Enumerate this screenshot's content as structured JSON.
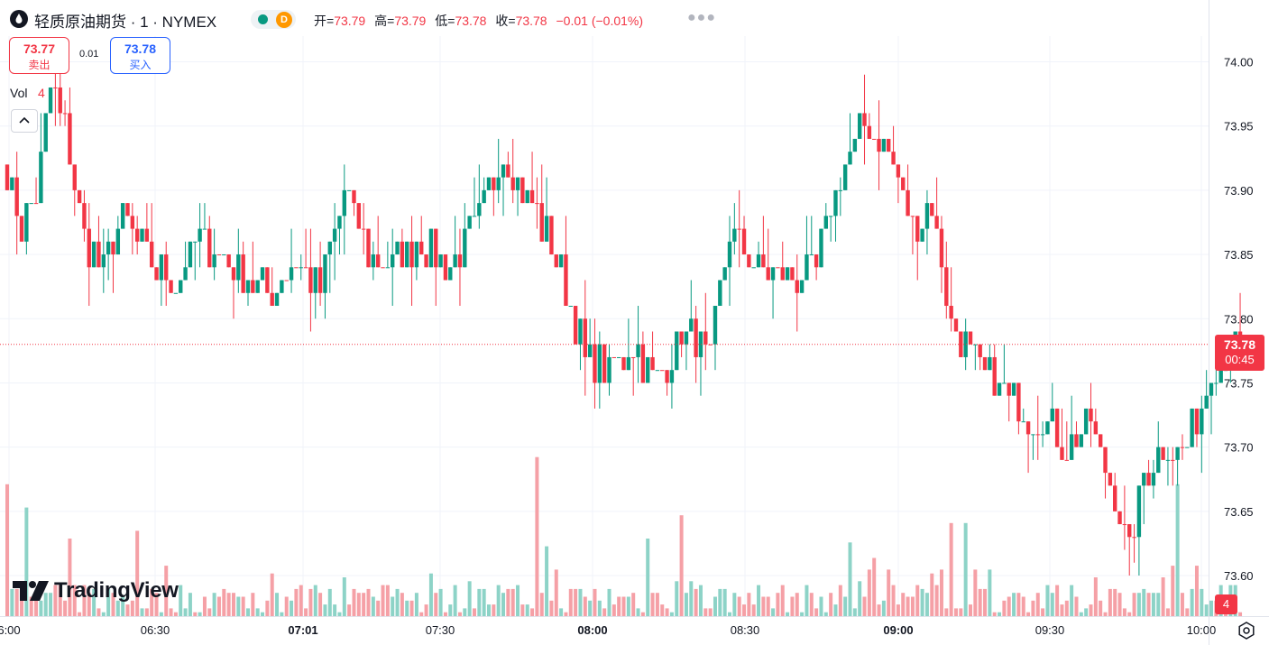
{
  "header": {
    "symbol_title": "轻质原油期货 · 1 · NYMEX",
    "status_letter": "D",
    "ohlc": [
      {
        "label": "开=",
        "value": "73.79"
      },
      {
        "label": "高=",
        "value": "73.79"
      },
      {
        "label": "低=",
        "value": "73.78"
      },
      {
        "label": "收=",
        "value": "73.78"
      }
    ],
    "change": "−0.01 (−0.01%)",
    "more_icon": "more-dots-icon"
  },
  "trade": {
    "sell_price": "73.77",
    "sell_label": "卖出",
    "spread": "0.01",
    "buy_price": "73.78",
    "buy_label": "买入"
  },
  "volume_legend": {
    "label": "Vol",
    "value": "4"
  },
  "brand": {
    "name": "TradingView"
  },
  "price_label": {
    "price": "73.78",
    "countdown": "00:45"
  },
  "volume_label": "4",
  "colors": {
    "up": "#089981",
    "down": "#f23645",
    "up_volume": "#8dd3c7",
    "down_volume": "#f5a0a6",
    "grid": "#f0f3fa",
    "axis_text": "#131722"
  },
  "chart_data": {
    "type": "candlestick",
    "interval": "1 minute",
    "y_ticks": [
      "74.00",
      "73.95",
      "73.90",
      "73.85",
      "73.80",
      "73.75",
      "73.70",
      "73.65",
      "73.60"
    ],
    "x_ticks": [
      "6:00",
      "06:30",
      "07:01",
      "07:30",
      "08:00",
      "08:30",
      "09:00",
      "09:30",
      "10:00"
    ],
    "x_tick_bold": [
      false,
      false,
      true,
      false,
      true,
      false,
      true,
      false,
      false
    ],
    "ylim": [
      73.575,
      74.04
    ],
    "current_price": 73.78,
    "grid": true,
    "series": [
      {
        "name": "price",
        "waypoints": [
          [
            0,
            73.91
          ],
          [
            3,
            73.87
          ],
          [
            6,
            73.9
          ],
          [
            9,
            73.98
          ],
          [
            12,
            73.95
          ],
          [
            16,
            73.86
          ],
          [
            20,
            73.84
          ],
          [
            24,
            73.88
          ],
          [
            30,
            73.84
          ],
          [
            35,
            73.83
          ],
          [
            40,
            73.86
          ],
          [
            45,
            73.85
          ],
          [
            50,
            73.83
          ],
          [
            55,
            73.82
          ],
          [
            60,
            73.85
          ],
          [
            65,
            73.82
          ],
          [
            70,
            73.9
          ],
          [
            75,
            73.85
          ],
          [
            80,
            73.84
          ],
          [
            85,
            73.86
          ],
          [
            92,
            73.84
          ],
          [
            97,
            73.87
          ],
          [
            103,
            73.93
          ],
          [
            110,
            73.88
          ],
          [
            115,
            73.84
          ],
          [
            120,
            73.77
          ],
          [
            125,
            73.76
          ],
          [
            130,
            73.78
          ],
          [
            135,
            73.75
          ],
          [
            140,
            73.79
          ],
          [
            146,
            73.77
          ],
          [
            150,
            73.87
          ],
          [
            155,
            73.84
          ],
          [
            162,
            73.83
          ],
          [
            168,
            73.84
          ],
          [
            172,
            73.9
          ],
          [
            178,
            73.95
          ],
          [
            183,
            73.93
          ],
          [
            188,
            73.87
          ],
          [
            192,
            73.89
          ],
          [
            196,
            73.8
          ],
          [
            200,
            73.77
          ],
          [
            205,
            73.75
          ],
          [
            210,
            73.73
          ],
          [
            215,
            73.72
          ],
          [
            220,
            73.7
          ],
          [
            225,
            73.72
          ],
          [
            230,
            73.66
          ],
          [
            233,
            73.62
          ],
          [
            236,
            73.68
          ],
          [
            240,
            73.7
          ],
          [
            245,
            73.7
          ],
          [
            250,
            73.76
          ],
          [
            256,
            73.78
          ]
        ]
      },
      {
        "name": "volume"
      }
    ],
    "volume_spikes": {
      "0": 34,
      "4": 28,
      "13": 20,
      "27": 22,
      "55": 11,
      "110": 41,
      "112": 18,
      "133": 20,
      "140": 26,
      "175": 19,
      "180": 15,
      "183": 12,
      "196": 24,
      "199": 24,
      "204": 12,
      "242": 13,
      "243": 34,
      "247": 13
    },
    "bars_count": 257
  }
}
